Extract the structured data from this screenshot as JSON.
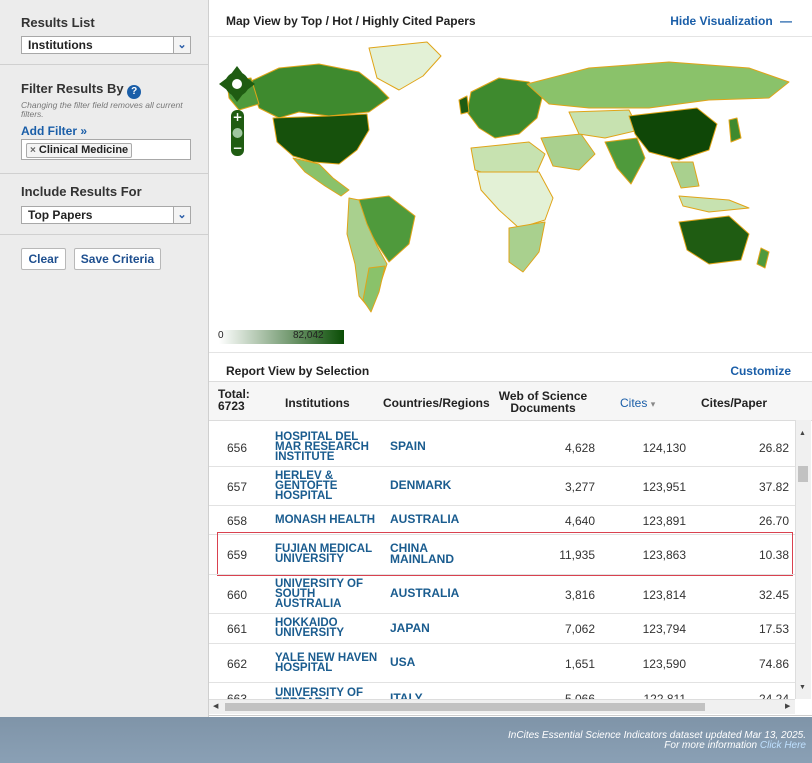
{
  "sidebar": {
    "results_list_title": "Results List",
    "results_list_value": "Institutions",
    "filter_title": "Filter Results By",
    "filter_help": "?",
    "filter_note": "Changing the filter field removes all current filters.",
    "add_filter": "Add Filter »",
    "filter_chip_x": "×",
    "filter_chip": "Clinical Medicine",
    "include_title": "Include Results For",
    "include_value": "Top Papers",
    "clear": "Clear",
    "save": "Save Criteria"
  },
  "map": {
    "title": "Map View by Top / Hot / Highly Cited Papers",
    "hide": "Hide Visualization",
    "hide_icon": "—",
    "legend_min": "0",
    "legend_max": "82,042",
    "colors": {
      "dark": "#1f5c12",
      "mid": "#4f9a3c",
      "light": "#a9d08e",
      "pale": "#e3f1d6",
      "border": "#e0a418"
    }
  },
  "report": {
    "title": "Report View by Selection",
    "customize": "Customize",
    "total_label": "Total:",
    "total_value": "6723",
    "col_institutions": "Institutions",
    "col_countries": "Countries/Regions",
    "col_wos": "Web of Science Documents",
    "col_cites": "Cites",
    "col_cites_sort": "▾",
    "col_cpp": "Cites/Paper",
    "rows": [
      {
        "rank": "656",
        "inst": "HOSPITAL DEL MAR RESEARCH INSTITUTE",
        "country": "SPAIN",
        "docs": "4,628",
        "cites": "124,130",
        "cpp": "26.82"
      },
      {
        "rank": "657",
        "inst": "HERLEV & GENTOFTE HOSPITAL",
        "country": "DENMARK",
        "docs": "3,277",
        "cites": "123,951",
        "cpp": "37.82"
      },
      {
        "rank": "658",
        "inst": "MONASH HEALTH",
        "country": "AUSTRALIA",
        "docs": "4,640",
        "cites": "123,891",
        "cpp": "26.70"
      },
      {
        "rank": "659",
        "inst": "FUJIAN MEDICAL UNIVERSITY",
        "country": "CHINA MAINLAND",
        "docs": "11,935",
        "cites": "123,863",
        "cpp": "10.38"
      },
      {
        "rank": "660",
        "inst": "UNIVERSITY OF SOUTH AUSTRALIA",
        "country": "AUSTRALIA",
        "docs": "3,816",
        "cites": "123,814",
        "cpp": "32.45"
      },
      {
        "rank": "661",
        "inst": "HOKKAIDO UNIVERSITY",
        "country": "JAPAN",
        "docs": "7,062",
        "cites": "123,794",
        "cpp": "17.53"
      },
      {
        "rank": "662",
        "inst": "YALE NEW HAVEN HOSPITAL",
        "country": "USA",
        "docs": "1,651",
        "cites": "123,590",
        "cpp": "74.86"
      },
      {
        "rank": "663",
        "inst": "UNIVERSITY OF FERRARA",
        "country": "ITALY",
        "docs": "5,066",
        "cites": "122,811",
        "cpp": "24.24"
      }
    ],
    "highlight_color": "#d9414f"
  },
  "footer": {
    "line1": "InCites Essential Science Indicators dataset updated Mar 13, 2025.",
    "line2": "For more information",
    "link": "Click Here"
  }
}
